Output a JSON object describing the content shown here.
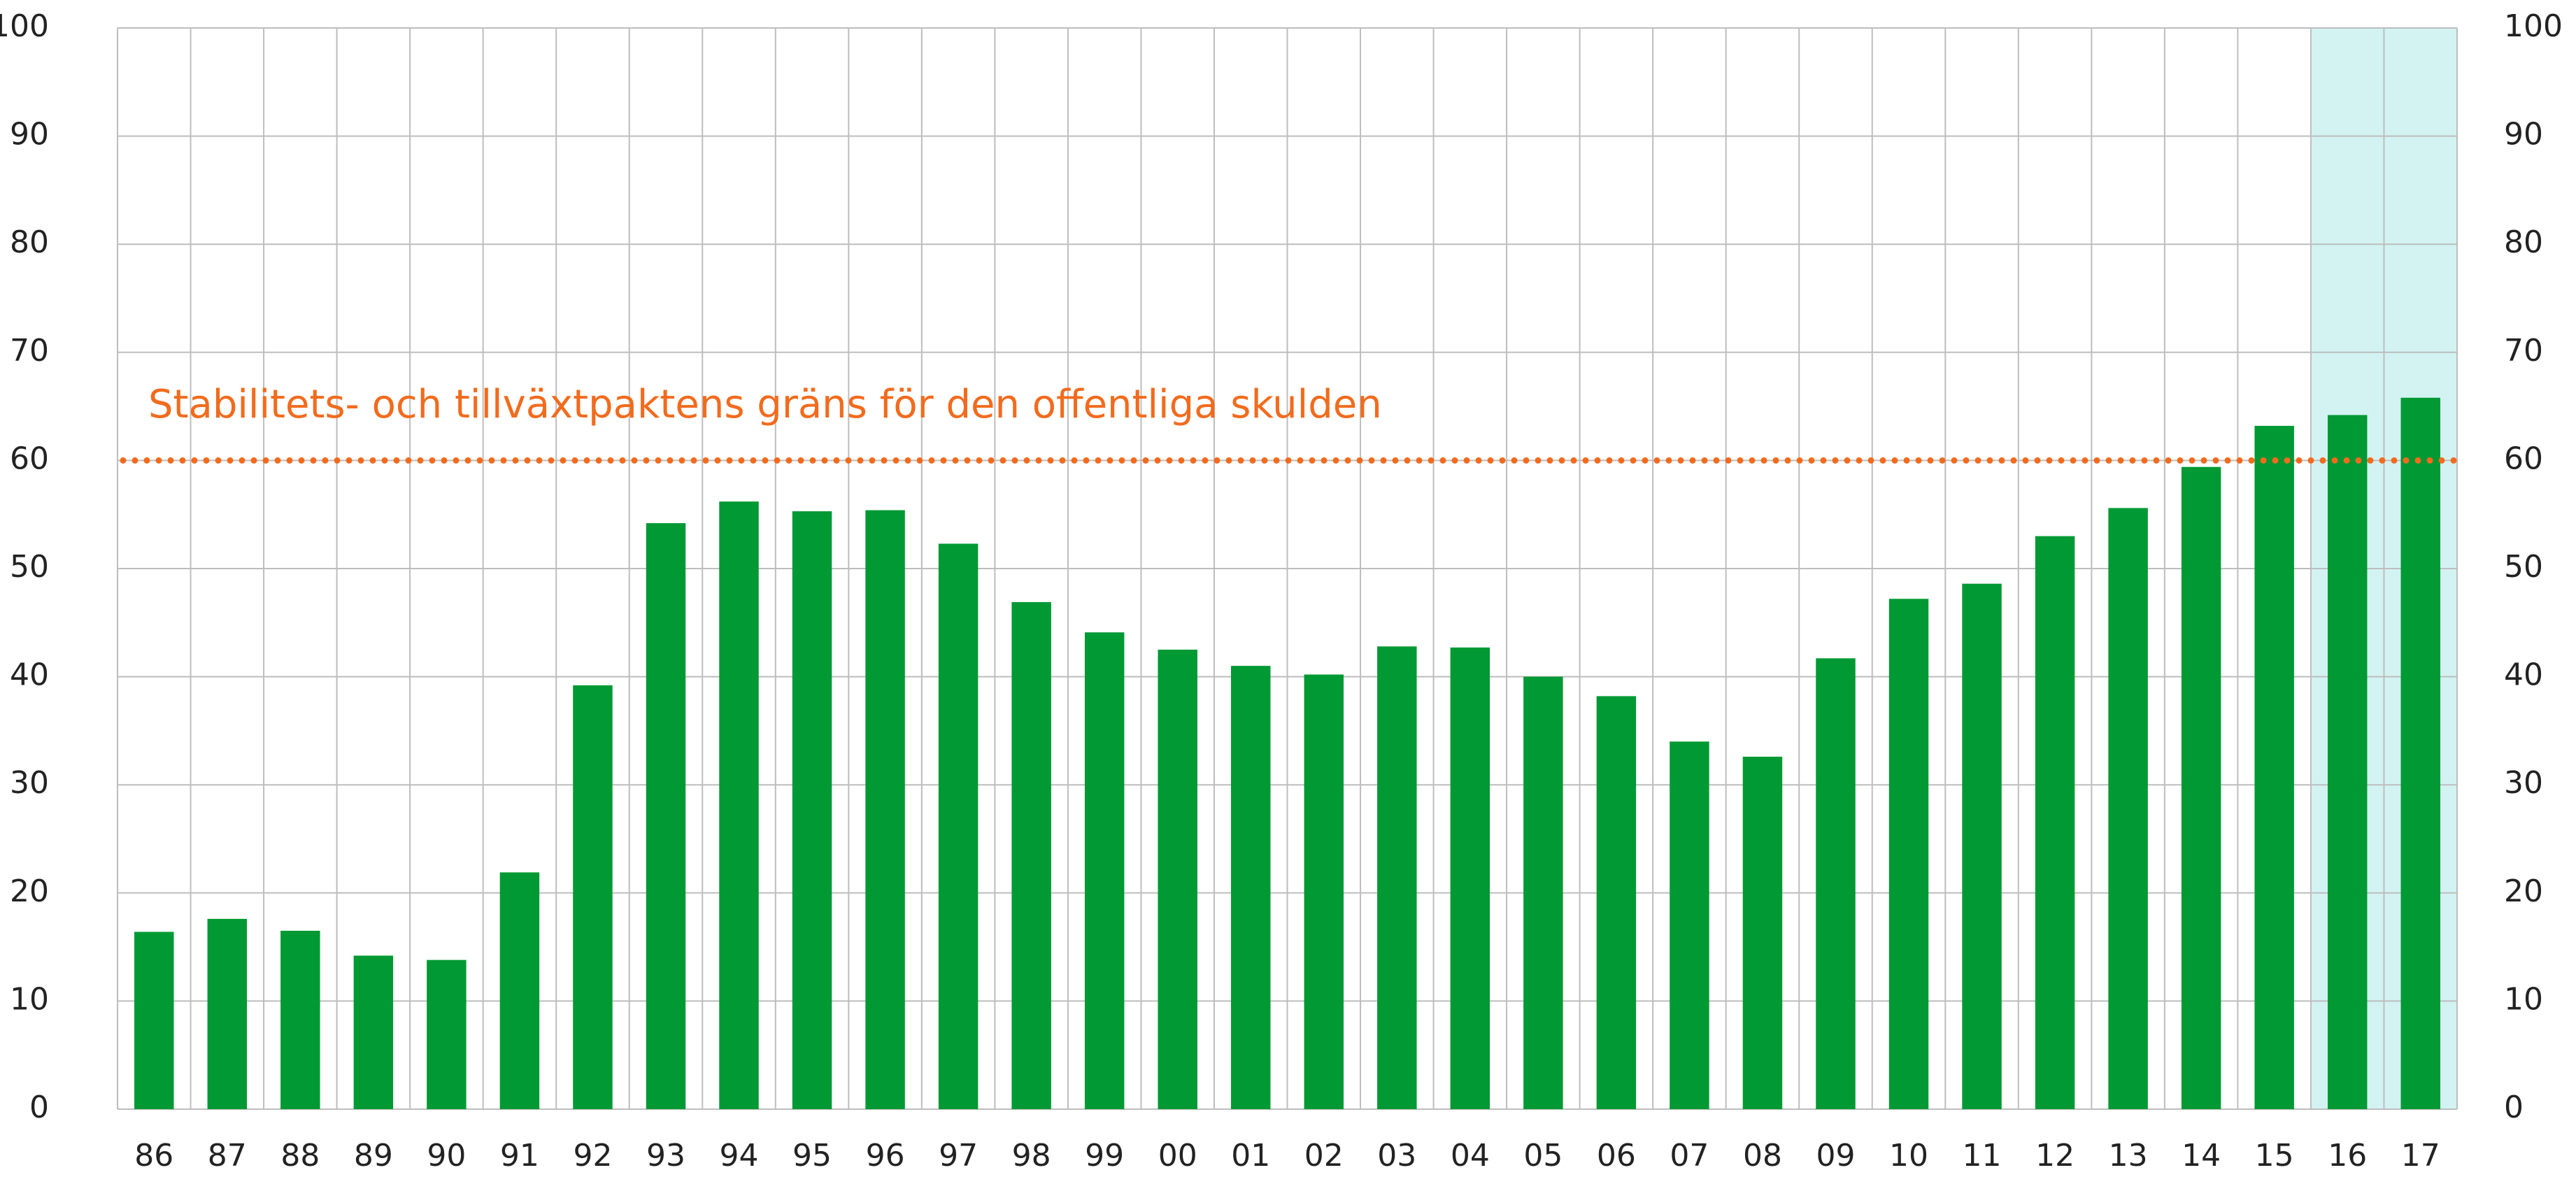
{
  "chart_data": {
    "type": "bar",
    "categories": [
      "86",
      "87",
      "88",
      "89",
      "90",
      "91",
      "92",
      "93",
      "94",
      "95",
      "96",
      "97",
      "98",
      "99",
      "00",
      "01",
      "02",
      "03",
      "04",
      "05",
      "06",
      "07",
      "08",
      "09",
      "10",
      "11",
      "12",
      "13",
      "14",
      "15",
      "16",
      "17"
    ],
    "values": [
      16.4,
      17.6,
      16.5,
      14.2,
      13.8,
      21.9,
      39.2,
      54.2,
      56.2,
      55.3,
      55.4,
      52.3,
      46.9,
      44.1,
      42.5,
      41.0,
      40.2,
      42.8,
      42.7,
      40.0,
      38.2,
      34.0,
      32.6,
      41.7,
      47.2,
      48.6,
      53.0,
      55.6,
      59.4,
      63.2,
      64.2,
      65.8
    ],
    "color": "#009933",
    "ylim": [
      0,
      100
    ],
    "yticks": [
      0,
      10,
      20,
      30,
      40,
      50,
      60,
      70,
      80,
      90,
      100
    ],
    "grid": true,
    "reference_line": {
      "value": 60,
      "label": "Stabilitets- och tillväxtpaktens gräns för den offentliga skulden",
      "color": "#f26b1d"
    },
    "shaded_range": [
      30,
      31
    ],
    "shade_color": "#d3f3f3"
  }
}
